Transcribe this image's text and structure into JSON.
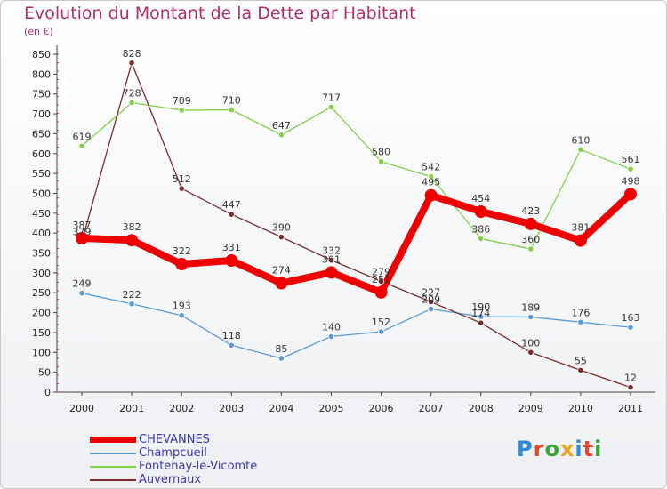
{
  "header": {
    "title": "Evolution du Montant de la Dette par Habitant",
    "unit": "(en €)"
  },
  "logo": {
    "letters": [
      "P",
      "r",
      "o",
      "x",
      "i",
      "t",
      "i"
    ],
    "colors": [
      "#2e8bd9",
      "#e0492b",
      "#3aa53a",
      "#e8a91c",
      "#2e8bd9",
      "#e0492b",
      "#3aa53a"
    ]
  },
  "chart_data": {
    "type": "line",
    "title": "Evolution du Montant de la Dette par Habitant",
    "ylabel": "(en €)",
    "xlabel": "",
    "categories": [
      "2000",
      "2001",
      "2002",
      "2003",
      "2004",
      "2005",
      "2006",
      "2007",
      "2008",
      "2009",
      "2010",
      "2011"
    ],
    "ylim": [
      0,
      850
    ],
    "yticks": [
      0,
      50,
      100,
      150,
      200,
      250,
      300,
      350,
      400,
      450,
      500,
      550,
      600,
      650,
      700,
      750,
      800,
      850
    ],
    "grid": false,
    "legend_position": "bottom-left",
    "series": [
      {
        "name": "CHEVANNES",
        "color": "#ee0000",
        "values": [
          387,
          382,
          322,
          331,
          274,
          301,
          251,
          495,
          454,
          423,
          381,
          498
        ],
        "labels": [
          "387",
          "382",
          "322",
          "331",
          "274",
          "301",
          "251",
          "495",
          "454",
          "423",
          "381",
          "498"
        ]
      },
      {
        "name": "Champcueil",
        "color": "#5b9bd5",
        "values": [
          249,
          222,
          193,
          118,
          85,
          140,
          152,
          209,
          190,
          189,
          176,
          163
        ],
        "labels": [
          "249",
          "222",
          "193",
          "118",
          "85",
          "140",
          "152",
          "209",
          "190",
          "189",
          "176",
          "163"
        ]
      },
      {
        "name": "Fontenay-le-Vicomte",
        "color": "#82d04a",
        "values": [
          619,
          728,
          709,
          710,
          647,
          717,
          580,
          542,
          386,
          360,
          610,
          561
        ],
        "labels": [
          "619",
          "728",
          "709",
          "710",
          "647",
          "717",
          "580",
          "542",
          "386",
          "360",
          "610",
          "561"
        ]
      },
      {
        "name": "Auvernaux",
        "color": "#7a2a2a",
        "values": [
          379,
          828,
          512,
          447,
          390,
          332,
          279,
          227,
          174,
          100,
          55,
          12
        ],
        "labels": [
          "379",
          "828",
          "512",
          "447",
          "390",
          "332",
          "279",
          "227",
          "174",
          "100",
          "55",
          "12"
        ]
      }
    ]
  }
}
